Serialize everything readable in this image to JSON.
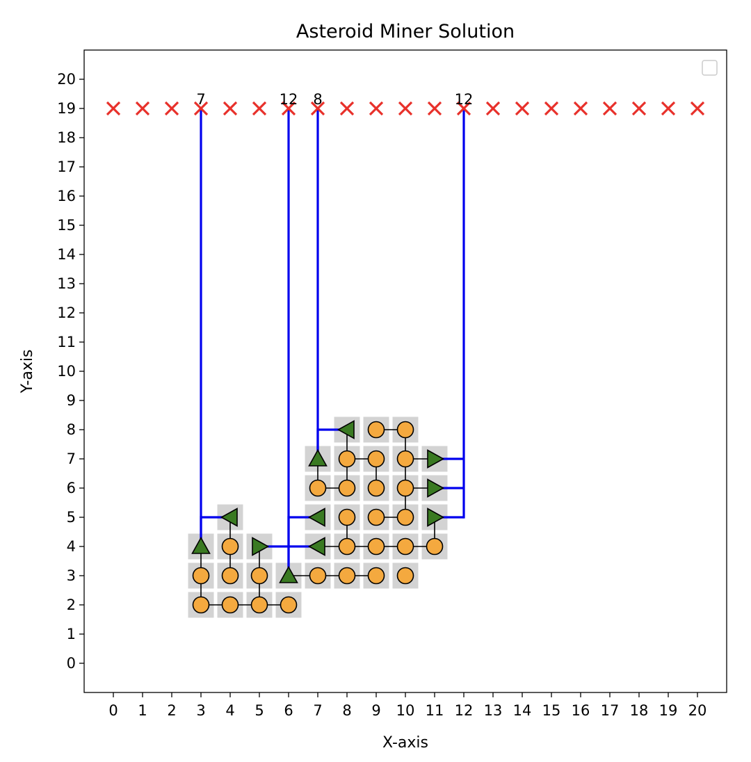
{
  "chart_data": {
    "type": "scatter",
    "title": "Asteroid Miner Solution",
    "xlabel": "X-axis",
    "ylabel": "Y-axis",
    "xlim": [
      -1,
      21
    ],
    "ylim": [
      -1,
      21
    ],
    "xticks": [
      0,
      1,
      2,
      3,
      4,
      5,
      6,
      7,
      8,
      9,
      10,
      11,
      12,
      13,
      14,
      15,
      16,
      17,
      18,
      19,
      20
    ],
    "yticks": [
      0,
      1,
      2,
      3,
      4,
      5,
      6,
      7,
      8,
      9,
      10,
      11,
      12,
      13,
      14,
      15,
      16,
      17,
      18,
      19,
      20
    ],
    "grid": false,
    "legend": {
      "placement": "top-right",
      "entries": []
    },
    "colors": {
      "tile": "#d3d3d3",
      "asteroid": "#f4a93f",
      "miner": "#3a7a22",
      "path": "#0000ee",
      "exit": "#e8302a",
      "link": "#000000"
    },
    "tiles": [
      [
        3,
        2
      ],
      [
        4,
        2
      ],
      [
        5,
        2
      ],
      [
        6,
        2
      ],
      [
        3,
        3
      ],
      [
        4,
        3
      ],
      [
        5,
        3
      ],
      [
        6,
        3
      ],
      [
        7,
        3
      ],
      [
        8,
        3
      ],
      [
        9,
        3
      ],
      [
        10,
        3
      ],
      [
        3,
        4
      ],
      [
        4,
        4
      ],
      [
        5,
        4
      ],
      [
        7,
        4
      ],
      [
        8,
        4
      ],
      [
        9,
        4
      ],
      [
        10,
        4
      ],
      [
        11,
        4
      ],
      [
        4,
        5
      ],
      [
        7,
        5
      ],
      [
        8,
        5
      ],
      [
        9,
        5
      ],
      [
        10,
        5
      ],
      [
        11,
        5
      ],
      [
        7,
        6
      ],
      [
        8,
        6
      ],
      [
        9,
        6
      ],
      [
        10,
        6
      ],
      [
        11,
        6
      ],
      [
        7,
        7
      ],
      [
        8,
        7
      ],
      [
        9,
        7
      ],
      [
        10,
        7
      ],
      [
        11,
        7
      ],
      [
        8,
        8
      ],
      [
        9,
        8
      ],
      [
        10,
        8
      ]
    ],
    "asteroids": [
      [
        3,
        2
      ],
      [
        4,
        2
      ],
      [
        5,
        2
      ],
      [
        6,
        2
      ],
      [
        3,
        3
      ],
      [
        4,
        3
      ],
      [
        5,
        3
      ],
      [
        7,
        3
      ],
      [
        8,
        3
      ],
      [
        9,
        3
      ],
      [
        10,
        3
      ],
      [
        4,
        4
      ],
      [
        8,
        4
      ],
      [
        9,
        4
      ],
      [
        10,
        4
      ],
      [
        11,
        4
      ],
      [
        8,
        5
      ],
      [
        9,
        5
      ],
      [
        10,
        5
      ],
      [
        7,
        6
      ],
      [
        8,
        6
      ],
      [
        9,
        6
      ],
      [
        10,
        6
      ],
      [
        8,
        7
      ],
      [
        9,
        7
      ],
      [
        10,
        7
      ],
      [
        9,
        8
      ],
      [
        10,
        8
      ]
    ],
    "miners": [
      {
        "x": 3,
        "y": 4,
        "dir": "up"
      },
      {
        "x": 4,
        "y": 5,
        "dir": "left"
      },
      {
        "x": 5,
        "y": 4,
        "dir": "right"
      },
      {
        "x": 6,
        "y": 3,
        "dir": "up"
      },
      {
        "x": 7,
        "y": 4,
        "dir": "left"
      },
      {
        "x": 7,
        "y": 5,
        "dir": "left"
      },
      {
        "x": 7,
        "y": 7,
        "dir": "up"
      },
      {
        "x": 8,
        "y": 8,
        "dir": "left"
      },
      {
        "x": 11,
        "y": 5,
        "dir": "right"
      },
      {
        "x": 11,
        "y": 6,
        "dir": "right"
      },
      {
        "x": 11,
        "y": 7,
        "dir": "right"
      }
    ],
    "links": [
      [
        [
          3,
          2
        ],
        [
          4,
          2
        ]
      ],
      [
        [
          4,
          2
        ],
        [
          5,
          2
        ]
      ],
      [
        [
          5,
          2
        ],
        [
          6,
          2
        ]
      ],
      [
        [
          3,
          2
        ],
        [
          3,
          3
        ]
      ],
      [
        [
          3,
          3
        ],
        [
          3,
          4
        ]
      ],
      [
        [
          4,
          3
        ],
        [
          4,
          4
        ]
      ],
      [
        [
          4,
          4
        ],
        [
          4,
          5
        ]
      ],
      [
        [
          5,
          2
        ],
        [
          5,
          3
        ]
      ],
      [
        [
          5,
          3
        ],
        [
          5,
          4
        ]
      ],
      [
        [
          6,
          3
        ],
        [
          7,
          3
        ]
      ],
      [
        [
          7,
          3
        ],
        [
          8,
          3
        ]
      ],
      [
        [
          8,
          3
        ],
        [
          9,
          3
        ]
      ],
      [
        [
          7,
          4
        ],
        [
          8,
          4
        ]
      ],
      [
        [
          8,
          4
        ],
        [
          9,
          4
        ]
      ],
      [
        [
          9,
          4
        ],
        [
          10,
          4
        ]
      ],
      [
        [
          10,
          4
        ],
        [
          11,
          4
        ]
      ],
      [
        [
          8,
          4
        ],
        [
          8,
          5
        ]
      ],
      [
        [
          9,
          5
        ],
        [
          10,
          5
        ]
      ],
      [
        [
          10,
          5
        ],
        [
          10,
          6
        ]
      ],
      [
        [
          10,
          6
        ],
        [
          10,
          7
        ]
      ],
      [
        [
          10,
          7
        ],
        [
          10,
          8
        ]
      ],
      [
        [
          9,
          8
        ],
        [
          10,
          8
        ]
      ],
      [
        [
          7,
          6
        ],
        [
          8,
          6
        ]
      ],
      [
        [
          8,
          6
        ],
        [
          8,
          7
        ]
      ],
      [
        [
          8,
          7
        ],
        [
          9,
          7
        ]
      ],
      [
        [
          9,
          7
        ],
        [
          9,
          6
        ]
      ],
      [
        [
          7,
          6
        ],
        [
          7,
          7
        ]
      ],
      [
        [
          8,
          7
        ],
        [
          8,
          8
        ]
      ],
      [
        [
          10,
          6
        ],
        [
          11,
          6
        ]
      ],
      [
        [
          10,
          7
        ],
        [
          11,
          7
        ]
      ],
      [
        [
          11,
          4
        ],
        [
          11,
          5
        ]
      ]
    ],
    "paths": [
      {
        "exit_x": 3,
        "points": [
          [
            3,
            4
          ],
          [
            3,
            5
          ],
          [
            4,
            5
          ]
        ]
      },
      {
        "exit_x": 6,
        "points": [
          [
            5,
            4
          ],
          [
            7,
            4
          ]
        ]
      },
      {
        "exit_x": 6,
        "points": [
          [
            6,
            3
          ],
          [
            6,
            5
          ],
          [
            7,
            5
          ]
        ]
      },
      {
        "exit_x": 7,
        "points": [
          [
            7,
            7
          ],
          [
            7,
            8
          ],
          [
            8,
            8
          ]
        ]
      },
      {
        "exit_x": 12,
        "points": [
          [
            11,
            5
          ],
          [
            12,
            5
          ]
        ]
      },
      {
        "exit_x": 12,
        "points": [
          [
            11,
            6
          ],
          [
            12,
            6
          ]
        ]
      },
      {
        "exit_x": 12,
        "points": [
          [
            11,
            7
          ],
          [
            12,
            7
          ]
        ]
      }
    ],
    "vertical_paths": [
      {
        "x": 3,
        "from": 4,
        "to": 19
      },
      {
        "x": 6,
        "from": 3,
        "to": 19
      },
      {
        "x": 7,
        "from": 7,
        "to": 19
      },
      {
        "x": 12,
        "from": 5,
        "to": 19
      }
    ],
    "exits_row_y": 19,
    "exits_x": [
      0,
      1,
      2,
      3,
      4,
      5,
      6,
      7,
      8,
      9,
      10,
      11,
      12,
      13,
      14,
      15,
      16,
      17,
      18,
      19,
      20
    ],
    "exit_labels": [
      {
        "x": 3,
        "label": "7"
      },
      {
        "x": 6,
        "label": "12"
      },
      {
        "x": 7,
        "label": "8"
      },
      {
        "x": 12,
        "label": "12"
      }
    ]
  }
}
